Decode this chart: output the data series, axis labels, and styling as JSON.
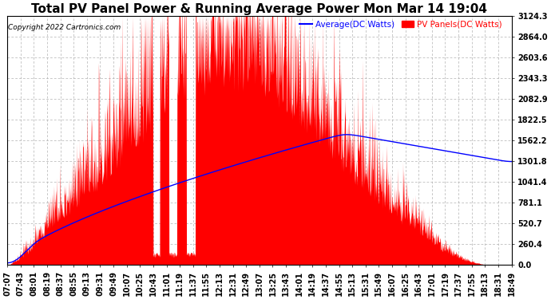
{
  "title": "Total PV Panel Power & Running Average Power Mon Mar 14 19:04",
  "copyright": "Copyright 2022 Cartronics.com",
  "legend_avg": "Average(DC Watts)",
  "legend_pv": "PV Panels(DC Watts)",
  "ymax": 3124.3,
  "yticks": [
    0.0,
    260.4,
    520.7,
    781.1,
    1041.4,
    1301.8,
    1562.2,
    1822.5,
    2082.9,
    2343.3,
    2603.6,
    2864.0,
    3124.3
  ],
  "ytick_labels": [
    "0.0",
    "260.4",
    "520.7",
    "781.1",
    "1041.4",
    "1301.8",
    "1562.2",
    "1822.5",
    "2082.9",
    "2343.3",
    "2603.6",
    "2864.0",
    "3124.3"
  ],
  "xtick_labels": [
    "07:07",
    "07:43",
    "08:01",
    "08:19",
    "08:37",
    "08:55",
    "09:13",
    "09:31",
    "09:49",
    "10:07",
    "10:25",
    "10:43",
    "11:01",
    "11:19",
    "11:37",
    "11:55",
    "12:13",
    "12:31",
    "12:49",
    "13:07",
    "13:25",
    "13:43",
    "14:01",
    "14:19",
    "14:37",
    "14:55",
    "15:13",
    "15:31",
    "15:49",
    "16:07",
    "16:25",
    "16:43",
    "17:01",
    "17:19",
    "17:37",
    "17:55",
    "18:13",
    "18:31",
    "18:49"
  ],
  "background_color": "#ffffff",
  "plot_bg_color": "#ffffff",
  "grid_color": "#b0b0b0",
  "area_color": "#ff0000",
  "line_color": "#0000ff",
  "title_fontsize": 11,
  "axis_fontsize": 7,
  "copyright_fontsize": 6.5,
  "legend_fontsize": 7.5
}
